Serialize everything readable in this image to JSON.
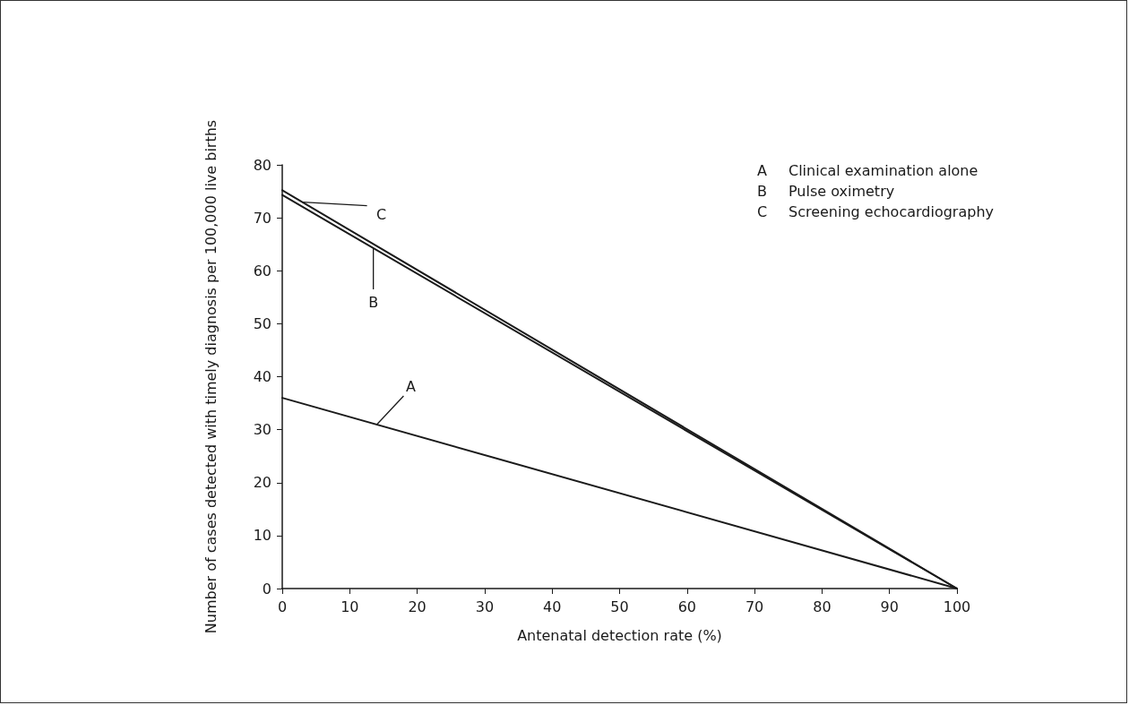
{
  "chart_data": {
    "type": "line",
    "xlabel": "Antenatal detection rate (%)",
    "ylabel": "Number of cases detected with timely diagnosis per 100,000 live births",
    "x": [
      0,
      100
    ],
    "series": [
      {
        "name": "A",
        "color": "#1a1a1a",
        "values": [
          36,
          0
        ]
      },
      {
        "name": "B",
        "color": "#1a1a1a",
        "values": [
          74.3,
          0
        ]
      },
      {
        "name": "C",
        "color": "#1a1a1a",
        "values": [
          75.2,
          0
        ]
      }
    ],
    "xlim": [
      0,
      100
    ],
    "xticks": [
      0,
      10,
      20,
      30,
      40,
      50,
      60,
      70,
      80,
      90,
      100
    ],
    "ylim": [
      0,
      80
    ],
    "yticks": [
      0,
      10,
      20,
      30,
      40,
      50,
      60,
      70,
      80
    ],
    "annotations": [
      "A Clinical examination alone",
      "B Pulse oximetry",
      "C Screening echocardiography"
    ],
    "grid": false,
    "legend": false,
    "marker": "none",
    "line_style": "solid"
  }
}
